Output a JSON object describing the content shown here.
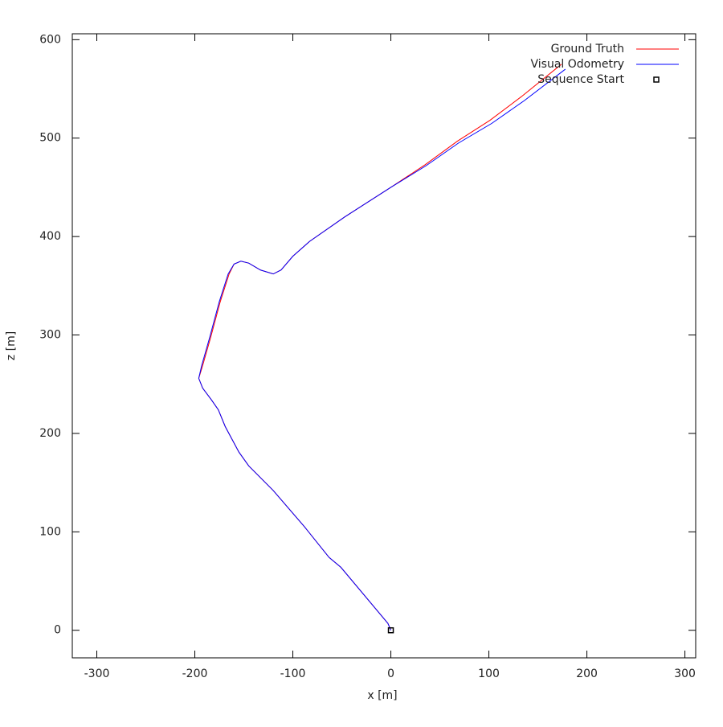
{
  "chart_data": {
    "type": "line",
    "xlabel": "x [m]",
    "ylabel": "z [m]",
    "xlim": [
      -325,
      311
    ],
    "ylim": [
      -28,
      606
    ],
    "xticks": [
      -300,
      -200,
      -100,
      0,
      100,
      200,
      300
    ],
    "yticks": [
      0,
      100,
      200,
      300,
      400,
      500,
      600
    ],
    "legend": "top-right",
    "series": [
      {
        "name": "Ground Truth",
        "color": "#ff0000",
        "x": [
          0,
          -3,
          -51,
          -63,
          -88,
          -120,
          -145,
          -155,
          -169,
          -176,
          -183,
          -192,
          -196,
          -192,
          -184,
          -174,
          -165,
          -160,
          -153,
          -145,
          -133,
          -120,
          -112,
          -100,
          -83,
          -47,
          0,
          35,
          68,
          101,
          133,
          174
        ],
        "values": [
          0,
          7,
          64,
          74,
          105,
          142,
          167,
          181,
          207,
          224,
          234,
          246,
          256,
          269,
          297,
          334,
          362,
          372,
          375,
          373,
          366,
          362,
          366,
          380,
          395,
          420,
          450,
          473,
          497,
          518,
          542,
          575
        ]
      },
      {
        "name": "Visual Odometry",
        "color": "#0000ff",
        "x": [
          0,
          -3,
          -51,
          -63,
          -88,
          -120,
          -145,
          -155,
          -169,
          -176,
          -183,
          -192,
          -196,
          -193,
          -185,
          -175,
          -166,
          -160,
          -153,
          -145,
          -133,
          -120,
          -112,
          -100,
          -83,
          -47,
          0,
          36,
          69,
          103,
          136,
          178
        ],
        "values": [
          0,
          7,
          64,
          74,
          105,
          142,
          167,
          181,
          207,
          224,
          234,
          246,
          256,
          269,
          297,
          334,
          362,
          372,
          375,
          373,
          366,
          362,
          366,
          380,
          395,
          420,
          450,
          472,
          495,
          515,
          538,
          570
        ]
      },
      {
        "name": "Sequence Start",
        "color": "#000000",
        "marker": "square",
        "x": [
          0
        ],
        "values": [
          0
        ]
      }
    ]
  }
}
